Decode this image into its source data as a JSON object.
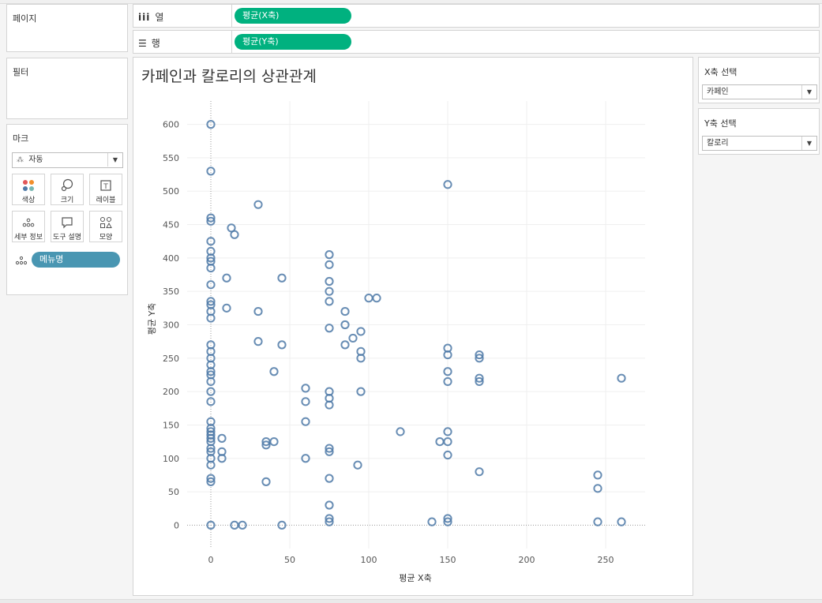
{
  "pages_panel": {
    "title": "페이지"
  },
  "filters_panel": {
    "title": "필터"
  },
  "marks_panel": {
    "title": "마크",
    "mark_type": "자동",
    "buttons": [
      {
        "label": "색상",
        "icon": "color-icon"
      },
      {
        "label": "크기",
        "icon": "size-icon"
      },
      {
        "label": "레이블",
        "icon": "label-icon"
      },
      {
        "label": "세부 정보",
        "icon": "detail-icon"
      },
      {
        "label": "도구 설명",
        "icon": "tooltip-icon"
      },
      {
        "label": "모양",
        "icon": "shape-icon"
      }
    ],
    "field_pill": "메뉴명"
  },
  "shelves": {
    "columns": {
      "label": "열",
      "pill": "평균(X축)"
    },
    "rows": {
      "label": "행",
      "pill": "평균(Y축)"
    }
  },
  "view": {
    "title": "카페인과 칼로리의 상관관계"
  },
  "parameters": {
    "x_select": {
      "title": "X축 선택",
      "value": "카페인"
    },
    "y_select": {
      "title": "Y축 선택",
      "value": "칼로리"
    }
  },
  "colors": {
    "pill_green": "#00b17f",
    "field_pill_blue": "#4996b2",
    "mark_stroke": "#4e79a7"
  },
  "chart_data": {
    "type": "scatter",
    "xlabel": "평균 X축",
    "ylabel": "평균 Y축",
    "xlim": [
      -15,
      275
    ],
    "ylim": [
      -35,
      635
    ],
    "xticks": [
      0,
      50,
      100,
      150,
      200,
      250
    ],
    "yticks": [
      0,
      50,
      100,
      150,
      200,
      250,
      300,
      350,
      400,
      450,
      500,
      550,
      600
    ],
    "marker": "hollow-circle",
    "grid": true,
    "points": [
      [
        0,
        600
      ],
      [
        0,
        530
      ],
      [
        0,
        460
      ],
      [
        0,
        455
      ],
      [
        0,
        425
      ],
      [
        0,
        410
      ],
      [
        0,
        400
      ],
      [
        0,
        395
      ],
      [
        0,
        385
      ],
      [
        0,
        360
      ],
      [
        0,
        335
      ],
      [
        0,
        330
      ],
      [
        0,
        320
      ],
      [
        0,
        310
      ],
      [
        0,
        270
      ],
      [
        0,
        260
      ],
      [
        0,
        250
      ],
      [
        0,
        240
      ],
      [
        0,
        230
      ],
      [
        0,
        225
      ],
      [
        0,
        215
      ],
      [
        0,
        200
      ],
      [
        0,
        185
      ],
      [
        0,
        155
      ],
      [
        0,
        145
      ],
      [
        0,
        140
      ],
      [
        0,
        135
      ],
      [
        0,
        130
      ],
      [
        0,
        125
      ],
      [
        0,
        115
      ],
      [
        0,
        110
      ],
      [
        0,
        100
      ],
      [
        0,
        90
      ],
      [
        0,
        70
      ],
      [
        0,
        65
      ],
      [
        0,
        0
      ],
      [
        10,
        370
      ],
      [
        10,
        325
      ],
      [
        13,
        445
      ],
      [
        15,
        435
      ],
      [
        15,
        0
      ],
      [
        7,
        130
      ],
      [
        7,
        110
      ],
      [
        7,
        100
      ],
      [
        20,
        0
      ],
      [
        30,
        480
      ],
      [
        30,
        320
      ],
      [
        30,
        275
      ],
      [
        35,
        125
      ],
      [
        35,
        120
      ],
      [
        35,
        65
      ],
      [
        40,
        230
      ],
      [
        40,
        125
      ],
      [
        45,
        370
      ],
      [
        45,
        270
      ],
      [
        45,
        0
      ],
      [
        60,
        205
      ],
      [
        60,
        185
      ],
      [
        60,
        155
      ],
      [
        60,
        100
      ],
      [
        75,
        405
      ],
      [
        75,
        390
      ],
      [
        75,
        365
      ],
      [
        75,
        350
      ],
      [
        75,
        335
      ],
      [
        75,
        295
      ],
      [
        75,
        200
      ],
      [
        75,
        190
      ],
      [
        75,
        180
      ],
      [
        75,
        115
      ],
      [
        75,
        110
      ],
      [
        75,
        70
      ],
      [
        75,
        30
      ],
      [
        75,
        10
      ],
      [
        75,
        5
      ],
      [
        85,
        320
      ],
      [
        85,
        300
      ],
      [
        85,
        270
      ],
      [
        90,
        280
      ],
      [
        93,
        90
      ],
      [
        95,
        290
      ],
      [
        95,
        260
      ],
      [
        95,
        250
      ],
      [
        95,
        200
      ],
      [
        100,
        340
      ],
      [
        105,
        340
      ],
      [
        120,
        140
      ],
      [
        140,
        5
      ],
      [
        145,
        125
      ],
      [
        150,
        510
      ],
      [
        150,
        265
      ],
      [
        150,
        255
      ],
      [
        150,
        230
      ],
      [
        150,
        215
      ],
      [
        150,
        140
      ],
      [
        150,
        125
      ],
      [
        150,
        105
      ],
      [
        150,
        10
      ],
      [
        150,
        5
      ],
      [
        170,
        255
      ],
      [
        170,
        250
      ],
      [
        170,
        220
      ],
      [
        170,
        215
      ],
      [
        170,
        80
      ],
      [
        245,
        75
      ],
      [
        245,
        55
      ],
      [
        245,
        5
      ],
      [
        260,
        220
      ],
      [
        260,
        5
      ]
    ]
  }
}
